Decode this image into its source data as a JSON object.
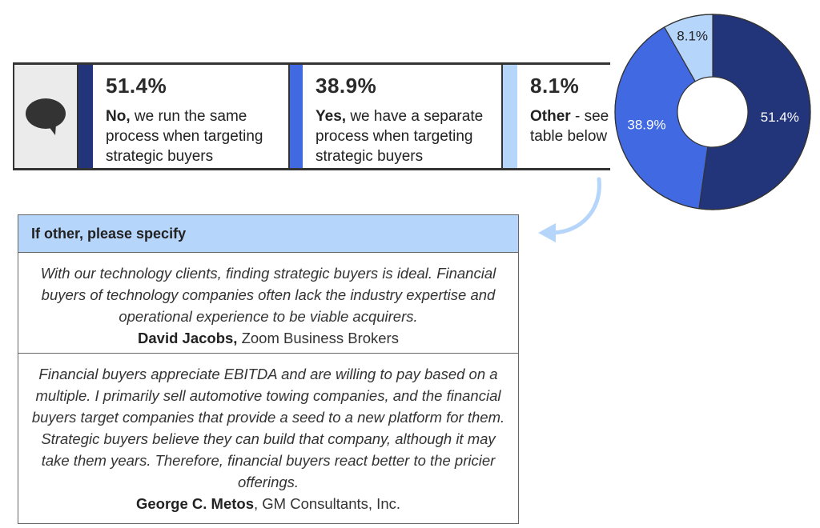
{
  "stats": [
    {
      "pct": "51.4%",
      "bold": "No,",
      "rest": " we run the same process when targeting strategic buyers",
      "color": "#22347a"
    },
    {
      "pct": "38.9%",
      "bold": "Yes,",
      "rest": " we have a separate process when targeting strategic buyers",
      "color": "#4169e1"
    },
    {
      "pct": "8.1%",
      "bold": "Other",
      "rest": " - see table below",
      "color": "#b6d5fb"
    }
  ],
  "icons": {
    "comment": "speech-bubble-icon",
    "arrow": "curved-arrow-icon"
  },
  "table": {
    "header": "If other, please specify",
    "quotes": [
      {
        "text": "With our technology clients, finding strategic buyers is ideal. Financial buyers of technology companies often lack the industry expertise and operational experience to be viable acquirers.",
        "author": "David Jacobs,",
        "company": " Zoom Business Brokers"
      },
      {
        "text": "Financial buyers appreciate EBITDA and are willing to pay based on a multiple. I primarily sell automotive towing companies, and the financial buyers target companies that provide a seed to a new platform for them. Strategic buyers believe they can build that company, although it may take them years. Therefore, financial buyers react better to the pricier offerings.",
        "author": "George C. Metos",
        "company": ", GM Consultants, Inc."
      }
    ]
  },
  "chart_data": {
    "type": "pie",
    "donut": true,
    "categories": [
      "No",
      "Yes",
      "Other"
    ],
    "values": [
      51.4,
      38.9,
      8.1
    ],
    "labels": [
      "51.4%",
      "38.9%",
      "8.1%"
    ],
    "colors": [
      "#22347a",
      "#4169e1",
      "#b6d5fb"
    ],
    "label_colors": [
      "#ffffff",
      "#ffffff",
      "#222222"
    ]
  }
}
